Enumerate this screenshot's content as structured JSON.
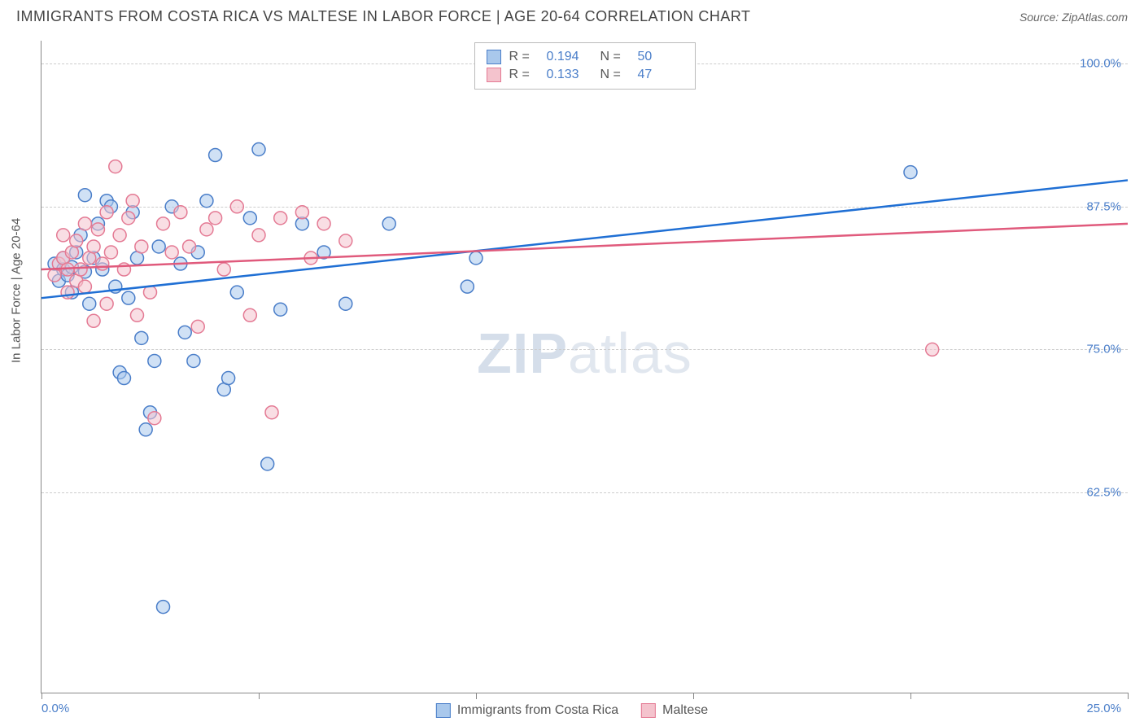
{
  "header": {
    "title": "IMMIGRANTS FROM COSTA RICA VS MALTESE IN LABOR FORCE | AGE 20-64 CORRELATION CHART",
    "source_label": "Source:",
    "source_value": "ZipAtlas.com"
  },
  "watermark": {
    "zip": "ZIP",
    "atlas": "atlas"
  },
  "chart": {
    "type": "scatter-with-regression",
    "background_color": "#ffffff",
    "grid_color": "#cccccc",
    "axis_color": "#888888",
    "text_color": "#555555",
    "tick_label_color": "#4a7ec9",
    "y_axis_label": "In Labor Force | Age 20-64",
    "xlim": [
      0,
      25
    ],
    "ylim": [
      45,
      102
    ],
    "y_gridlines": [
      62.5,
      75.0,
      87.5,
      100.0
    ],
    "y_tick_labels": [
      "62.5%",
      "75.0%",
      "87.5%",
      "100.0%"
    ],
    "x_tick_positions": [
      0,
      5,
      10,
      15,
      20,
      25
    ],
    "x_min_label": "0.0%",
    "x_max_label": "25.0%",
    "marker_radius": 8,
    "marker_opacity": 0.55,
    "line_width": 2.5,
    "series": [
      {
        "id": "costa_rica",
        "label": "Immigrants from Costa Rica",
        "R": "0.194",
        "N": "50",
        "fill": "#a9c8ec",
        "stroke": "#4a7ec9",
        "line_color": "#1f6fd4",
        "regression": {
          "x1": 0,
          "y1": 79.5,
          "x2": 25,
          "y2": 89.8
        },
        "points": [
          [
            0.3,
            82.5
          ],
          [
            0.4,
            81.0
          ],
          [
            0.5,
            83.0
          ],
          [
            0.5,
            82.0
          ],
          [
            0.6,
            81.5
          ],
          [
            0.7,
            82.2
          ],
          [
            0.7,
            80.0
          ],
          [
            0.8,
            83.5
          ],
          [
            0.9,
            85.0
          ],
          [
            1.0,
            81.8
          ],
          [
            1.0,
            88.5
          ],
          [
            1.1,
            79.0
          ],
          [
            1.2,
            83.0
          ],
          [
            1.3,
            86.0
          ],
          [
            1.4,
            82.0
          ],
          [
            1.5,
            88.0
          ],
          [
            1.6,
            87.5
          ],
          [
            1.7,
            80.5
          ],
          [
            1.8,
            73.0
          ],
          [
            1.9,
            72.5
          ],
          [
            2.0,
            79.5
          ],
          [
            2.1,
            87.0
          ],
          [
            2.2,
            83.0
          ],
          [
            2.3,
            76.0
          ],
          [
            2.4,
            68.0
          ],
          [
            2.5,
            69.5
          ],
          [
            2.6,
            74.0
          ],
          [
            2.7,
            84.0
          ],
          [
            2.8,
            52.5
          ],
          [
            3.0,
            87.5
          ],
          [
            3.2,
            82.5
          ],
          [
            3.3,
            76.5
          ],
          [
            3.5,
            74.0
          ],
          [
            3.6,
            83.5
          ],
          [
            3.8,
            88.0
          ],
          [
            4.0,
            92.0
          ],
          [
            4.2,
            71.5
          ],
          [
            4.3,
            72.5
          ],
          [
            4.5,
            80.0
          ],
          [
            4.8,
            86.5
          ],
          [
            5.0,
            92.5
          ],
          [
            5.2,
            65.0
          ],
          [
            5.5,
            78.5
          ],
          [
            6.0,
            86.0
          ],
          [
            6.5,
            83.5
          ],
          [
            7.0,
            79.0
          ],
          [
            8.0,
            86.0
          ],
          [
            9.8,
            80.5
          ],
          [
            10.0,
            83.0
          ],
          [
            20.0,
            90.5
          ]
        ]
      },
      {
        "id": "maltese",
        "label": "Maltese",
        "R": "0.133",
        "N": "47",
        "fill": "#f4c3cd",
        "stroke": "#e47a94",
        "line_color": "#e05a7c",
        "regression": {
          "x1": 0,
          "y1": 82.0,
          "x2": 25,
          "y2": 86.0
        },
        "points": [
          [
            0.3,
            81.5
          ],
          [
            0.4,
            82.5
          ],
          [
            0.5,
            83.0
          ],
          [
            0.5,
            85.0
          ],
          [
            0.6,
            82.0
          ],
          [
            0.6,
            80.0
          ],
          [
            0.7,
            83.5
          ],
          [
            0.8,
            84.5
          ],
          [
            0.8,
            81.0
          ],
          [
            0.9,
            82.0
          ],
          [
            1.0,
            86.0
          ],
          [
            1.0,
            80.5
          ],
          [
            1.1,
            83.0
          ],
          [
            1.2,
            84.0
          ],
          [
            1.2,
            77.5
          ],
          [
            1.3,
            85.5
          ],
          [
            1.4,
            82.5
          ],
          [
            1.5,
            87.0
          ],
          [
            1.5,
            79.0
          ],
          [
            1.6,
            83.5
          ],
          [
            1.7,
            91.0
          ],
          [
            1.8,
            85.0
          ],
          [
            1.9,
            82.0
          ],
          [
            2.0,
            86.5
          ],
          [
            2.1,
            88.0
          ],
          [
            2.2,
            78.0
          ],
          [
            2.3,
            84.0
          ],
          [
            2.5,
            80.0
          ],
          [
            2.6,
            69.0
          ],
          [
            2.8,
            86.0
          ],
          [
            3.0,
            83.5
          ],
          [
            3.2,
            87.0
          ],
          [
            3.4,
            84.0
          ],
          [
            3.6,
            77.0
          ],
          [
            3.8,
            85.5
          ],
          [
            4.0,
            86.5
          ],
          [
            4.2,
            82.0
          ],
          [
            4.5,
            87.5
          ],
          [
            4.8,
            78.0
          ],
          [
            5.0,
            85.0
          ],
          [
            5.3,
            69.5
          ],
          [
            5.5,
            86.5
          ],
          [
            6.0,
            87.0
          ],
          [
            6.2,
            83.0
          ],
          [
            6.5,
            86.0
          ],
          [
            7.0,
            84.5
          ],
          [
            20.5,
            75.0
          ]
        ]
      }
    ],
    "legend_top": {
      "R_label": "R =",
      "N_label": "N ="
    }
  }
}
